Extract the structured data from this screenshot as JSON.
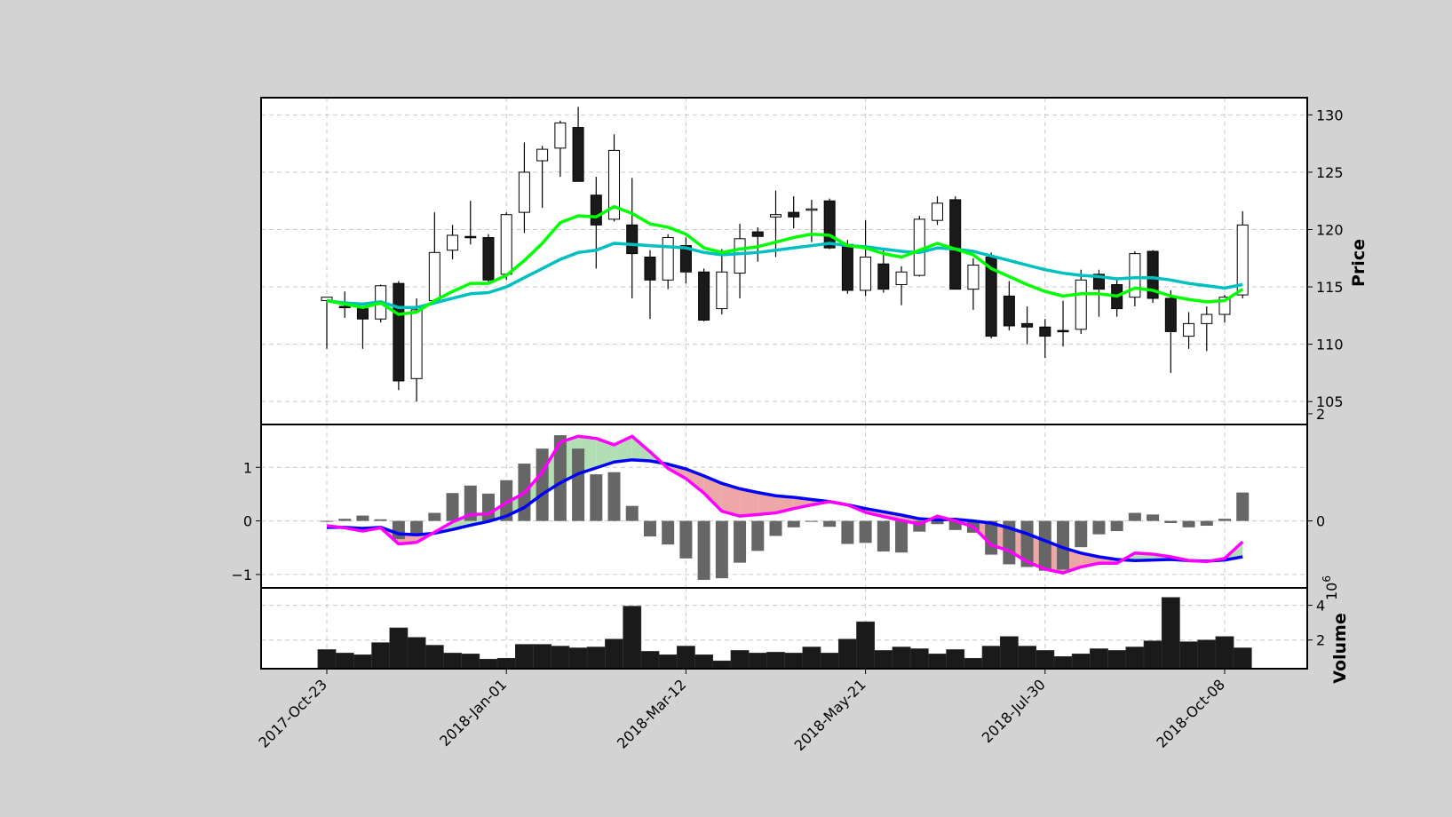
{
  "figure": {
    "background": "#d3d3d3"
  },
  "chart_data": [
    {
      "type": "candlestick",
      "panel": "price",
      "ylabel": "Price",
      "ylim": [
        103,
        131.5
      ],
      "yticks": [
        105,
        110,
        115,
        120,
        125,
        130
      ],
      "x_tick_labels": [
        "2017-Oct-23",
        "2018-Jan-01",
        "2018-Mar-12",
        "2018-May-21",
        "2018-Jul-30",
        "2018-Oct-08"
      ],
      "x_tick_index": [
        0,
        10,
        20,
        30,
        40,
        50
      ],
      "grid": true,
      "colors": {
        "up_body": "#ffffff",
        "down_body": "#1a1a1a",
        "ema_fast": "#00ff00",
        "ema_slow": "#00bfbf"
      },
      "candles": [
        [
          113.8,
          114.0,
          109.6,
          114.1
        ],
        [
          113.3,
          114.6,
          112.3,
          113.2
        ],
        [
          113.1,
          113.2,
          109.6,
          112.2
        ],
        [
          112.2,
          115.2,
          111.9,
          115.1
        ],
        [
          115.3,
          115.5,
          106.0,
          106.8
        ],
        [
          107.0,
          114.0,
          105.0,
          113.0
        ],
        [
          113.8,
          121.5,
          113.6,
          118.0
        ],
        [
          118.2,
          120.4,
          117.4,
          119.5
        ],
        [
          119.4,
          122.5,
          118.7,
          119.3
        ],
        [
          119.3,
          119.6,
          115.2,
          115.6
        ],
        [
          116.1,
          121.5,
          115.6,
          121.3
        ],
        [
          121.5,
          127.6,
          119.7,
          125.0
        ],
        [
          126.0,
          127.3,
          121.9,
          127.0
        ],
        [
          127.1,
          129.5,
          124.6,
          129.3
        ],
        [
          128.9,
          130.7,
          124.2,
          124.2
        ],
        [
          123.0,
          124.6,
          116.6,
          120.4
        ],
        [
          120.9,
          128.3,
          120.7,
          126.9
        ],
        [
          120.4,
          124.5,
          114.0,
          117.9
        ],
        [
          117.6,
          118.2,
          112.2,
          115.6
        ],
        [
          115.6,
          119.6,
          114.8,
          119.3
        ],
        [
          118.6,
          119.3,
          115.3,
          116.3
        ],
        [
          116.3,
          116.6,
          112.0,
          112.1
        ],
        [
          113.1,
          118.3,
          112.6,
          116.3
        ],
        [
          116.2,
          120.5,
          114.0,
          119.2
        ],
        [
          119.8,
          120.2,
          117.2,
          119.4
        ],
        [
          121.1,
          123.4,
          117.6,
          121.3
        ],
        [
          121.5,
          122.9,
          120.1,
          121.1
        ],
        [
          121.7,
          122.6,
          118.9,
          121.8
        ],
        [
          122.5,
          122.7,
          118.3,
          118.4
        ],
        [
          118.7,
          119.1,
          114.4,
          114.7
        ],
        [
          114.7,
          120.8,
          114.2,
          117.6
        ],
        [
          117.0,
          118.2,
          114.5,
          114.8
        ],
        [
          115.2,
          116.8,
          113.4,
          116.3
        ],
        [
          116.0,
          121.2,
          115.9,
          120.9
        ],
        [
          120.8,
          122.9,
          120.4,
          122.3
        ],
        [
          122.6,
          122.9,
          114.8,
          114.8
        ],
        [
          114.8,
          117.5,
          113.0,
          116.9
        ],
        [
          117.6,
          118.0,
          110.5,
          110.7
        ],
        [
          114.2,
          115.5,
          111.2,
          111.6
        ],
        [
          111.8,
          113.3,
          110.0,
          111.5
        ],
        [
          111.5,
          112.2,
          108.8,
          110.7
        ],
        [
          111.2,
          113.8,
          109.8,
          111.1
        ],
        [
          111.3,
          116.5,
          110.9,
          115.6
        ],
        [
          116.1,
          116.5,
          112.4,
          114.8
        ],
        [
          115.2,
          115.6,
          112.4,
          113.1
        ],
        [
          114.1,
          118.1,
          113.3,
          117.9
        ],
        [
          118.1,
          118.2,
          113.6,
          114.0
        ],
        [
          114.0,
          114.7,
          107.5,
          111.1
        ],
        [
          110.7,
          112.8,
          109.6,
          111.8
        ],
        [
          111.8,
          113.3,
          109.4,
          112.6
        ],
        [
          112.6,
          114.3,
          111.9,
          114.1
        ],
        [
          114.3,
          121.6,
          114.0,
          120.4
        ]
      ],
      "ema_fast": [
        113.8,
        113.5,
        113.2,
        113.6,
        112.6,
        112.8,
        113.8,
        114.6,
        115.3,
        115.3,
        116.0,
        117.3,
        118.8,
        120.6,
        121.2,
        121.1,
        122.0,
        121.4,
        120.5,
        120.2,
        119.6,
        118.4,
        118.0,
        118.3,
        118.5,
        118.9,
        119.3,
        119.6,
        119.5,
        118.6,
        118.4,
        117.9,
        117.6,
        118.2,
        118.8,
        118.3,
        117.8,
        116.6,
        115.9,
        115.2,
        114.6,
        114.2,
        114.4,
        114.4,
        114.2,
        114.9,
        114.7,
        114.2,
        113.9,
        113.7,
        113.8,
        114.8
      ],
      "ema_slow": [
        113.8,
        113.6,
        113.5,
        113.7,
        113.2,
        113.2,
        113.6,
        114.0,
        114.4,
        114.5,
        115.0,
        115.8,
        116.6,
        117.4,
        118.0,
        118.2,
        118.8,
        118.7,
        118.6,
        118.5,
        118.4,
        118.0,
        117.8,
        117.9,
        118.0,
        118.2,
        118.4,
        118.6,
        118.8,
        118.6,
        118.5,
        118.3,
        118.1,
        118.0,
        118.4,
        118.3,
        118.1,
        117.7,
        117.3,
        116.9,
        116.5,
        116.2,
        116.0,
        115.9,
        115.7,
        115.8,
        115.8,
        115.6,
        115.3,
        115.1,
        114.9,
        115.2
      ]
    },
    {
      "type": "macd",
      "panel": "macd",
      "ylim": [
        -1.25,
        1.8
      ],
      "left_yticks": [
        -1,
        0,
        1
      ],
      "right_yticks": [
        0,
        2
      ],
      "right_tick_labels": [
        "0",
        "2"
      ],
      "grid": true,
      "colors": {
        "macd": "#ff00ff",
        "signal": "#0000ff",
        "histogram": "#666666",
        "fill_above": "#b3deb3",
        "fill_below": "#eda7a7"
      },
      "macd": [
        -0.09,
        -0.13,
        -0.19,
        -0.13,
        -0.43,
        -0.4,
        -0.21,
        -0.02,
        0.12,
        0.13,
        0.34,
        0.52,
        0.91,
        1.47,
        1.58,
        1.54,
        1.42,
        1.58,
        1.29,
        0.98,
        0.79,
        0.52,
        0.18,
        0.09,
        0.12,
        0.15,
        0.23,
        0.3,
        0.36,
        0.3,
        0.16,
        0.08,
        0.01,
        -0.06,
        0.09,
        0.0,
        -0.11,
        -0.45,
        -0.56,
        -0.76,
        -0.9,
        -0.97,
        -0.86,
        -0.79,
        -0.79,
        -0.6,
        -0.62,
        -0.67,
        -0.74,
        -0.76,
        -0.7,
        -0.39
      ],
      "signal": [
        -0.12,
        -0.12,
        -0.14,
        -0.12,
        -0.24,
        -0.26,
        -0.23,
        -0.16,
        -0.08,
        -0.01,
        0.09,
        0.25,
        0.5,
        0.71,
        0.88,
        0.99,
        1.1,
        1.14,
        1.12,
        1.06,
        0.97,
        0.84,
        0.7,
        0.6,
        0.53,
        0.47,
        0.44,
        0.4,
        0.36,
        0.3,
        0.23,
        0.17,
        0.11,
        0.04,
        0.02,
        0.03,
        0.0,
        -0.04,
        -0.13,
        -0.24,
        -0.37,
        -0.5,
        -0.6,
        -0.67,
        -0.72,
        -0.74,
        -0.73,
        -0.72,
        -0.74,
        -0.75,
        -0.73,
        -0.67
      ],
      "histogram": [
        0.0,
        0.04,
        0.1,
        0.03,
        -0.34,
        -0.24,
        0.15,
        0.52,
        0.66,
        0.51,
        0.76,
        1.07,
        1.35,
        1.6,
        1.35,
        0.87,
        0.91,
        0.28,
        -0.29,
        -0.44,
        -0.7,
        -1.1,
        -1.07,
        -0.78,
        -0.56,
        -0.28,
        -0.12,
        0.0,
        -0.11,
        -0.43,
        -0.41,
        -0.57,
        -0.59,
        -0.2,
        -0.06,
        -0.17,
        -0.22,
        -0.63,
        -0.81,
        -0.86,
        -0.93,
        -0.91,
        -0.49,
        -0.25,
        -0.19,
        0.15,
        0.12,
        -0.04,
        -0.12,
        -0.09,
        0.04,
        0.53
      ]
    },
    {
      "type": "bar",
      "panel": "volume",
      "ylabel": "Volume",
      "offset_label": "1e6",
      "ylim": [
        0.35,
        5.0
      ],
      "yticks": [
        2,
        4
      ],
      "colors": {
        "bars": "#1a1a1a"
      },
      "values": [
        1.45,
        1.25,
        1.15,
        1.85,
        2.7,
        2.15,
        1.7,
        1.25,
        1.2,
        0.9,
        0.95,
        1.75,
        1.75,
        1.65,
        1.55,
        1.6,
        2.05,
        3.95,
        1.35,
        1.15,
        1.65,
        1.15,
        0.8,
        1.4,
        1.25,
        1.3,
        1.25,
        1.6,
        1.25,
        2.05,
        3.05,
        1.4,
        1.6,
        1.5,
        1.2,
        1.45,
        0.95,
        1.65,
        2.2,
        1.65,
        1.4,
        1.05,
        1.2,
        1.5,
        1.4,
        1.6,
        1.95,
        4.45,
        1.9,
        2.0,
        2.2,
        1.55
      ]
    }
  ]
}
